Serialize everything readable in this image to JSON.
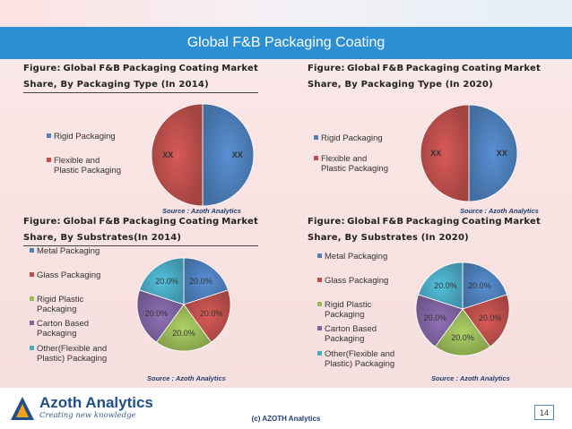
{
  "slide": {
    "title": "Global F&B Packaging Coating",
    "footer": {
      "brand": "Azoth Analytics",
      "tagline": "Creating new knowledge",
      "copyright": "(c) AZOTH Analytics",
      "page": "14"
    }
  },
  "panels": [
    {
      "fig_words": [
        "Figure:",
        "Global",
        "F&B",
        "Packaging",
        "Coating",
        "Market"
      ],
      "fig_line2": "Share, By Packaging Type (In 2014)",
      "source": "Source : Azoth Analytics",
      "legend": [
        "Rigid Packaging",
        "Flexible and\nPlastic Packaging"
      ]
    },
    {
      "fig_words": [
        "Figure:",
        "Global",
        "F&B",
        "Packaging",
        "Coating",
        "Market"
      ],
      "fig_line2": "Share, By Packaging Type (In 2020)",
      "source": "Source : Azoth Analytics",
      "legend": [
        "Rigid Packaging",
        "Flexible and\nPlastic Packaging"
      ]
    },
    {
      "fig_words": [
        "Figure:",
        "Global",
        "F&B",
        "Packaging",
        "Coating",
        "Market"
      ],
      "fig_line2": "Share, By Substrates(In 2014)",
      "source": "Source : Azoth Analytics",
      "legend": [
        "Metal Packaging",
        "Glass Packaging",
        "Rigid Plastic\nPackaging",
        "Carton Based\nPackaging",
        "Other(Flexible and\nPlastic) Packaging"
      ]
    },
    {
      "fig_words": [
        "Figure:",
        "Global",
        "F&B",
        "Packaging",
        "Coating",
        "Market"
      ],
      "fig_line2": "Share, By Substrates (In 2020)",
      "source": "Source : Azoth Analytics",
      "legend": [
        "Metal Packaging",
        "Glass Packaging",
        "Rigid Plastic\nPackaging",
        "Carton Based\nPackaging",
        "Other(Flexible and\nPlastic) Packaging"
      ]
    }
  ],
  "chart_data": [
    {
      "type": "pie",
      "title": "Global F&B Packaging Coating Market Share, By Packaging Type (In 2014)",
      "categories": [
        "Rigid Packaging",
        "Flexible and Plastic Packaging"
      ],
      "values": [
        50,
        50
      ],
      "data_labels": [
        "XX",
        "XX"
      ],
      "colors": [
        "#4f81bd",
        "#c0504d"
      ],
      "legend_position": "left"
    },
    {
      "type": "pie",
      "title": "Global F&B Packaging Coating Market Share, By Packaging Type (In 2020)",
      "categories": [
        "Rigid Packaging",
        "Flexible and Plastic Packaging"
      ],
      "values": [
        50,
        50
      ],
      "data_labels": [
        "XX",
        "XX"
      ],
      "colors": [
        "#4f81bd",
        "#c0504d"
      ],
      "legend_position": "left"
    },
    {
      "type": "pie",
      "title": "Global F&B Packaging Coating Market Share, By Substrates(In 2014)",
      "categories": [
        "Metal Packaging",
        "Glass Packaging",
        "Rigid Plastic Packaging",
        "Carton Based Packaging",
        "Other(Flexible and Plastic) Packaging"
      ],
      "values": [
        20,
        20,
        20,
        20,
        20
      ],
      "data_labels": [
        "20.0%",
        "20.0%",
        "20.0%",
        "20.0%",
        "20.0%"
      ],
      "colors": [
        "#4f81bd",
        "#c0504d",
        "#9bbb59",
        "#8064a2",
        "#4bacc6"
      ],
      "legend_position": "left"
    },
    {
      "type": "pie",
      "title": "Global F&B Packaging Coating Market Share, By Substrates (In 2020)",
      "categories": [
        "Metal Packaging",
        "Glass Packaging",
        "Rigid Plastic Packaging",
        "Carton Based Packaging",
        "Other(Flexible and Plastic) Packaging"
      ],
      "values": [
        20,
        20,
        20,
        20,
        20
      ],
      "data_labels": [
        "20.0%",
        "20.0%",
        "20.0%",
        "20.0%",
        "20.0%"
      ],
      "colors": [
        "#4f81bd",
        "#c0504d",
        "#9bbb59",
        "#8064a2",
        "#4bacc6"
      ],
      "legend_position": "left"
    }
  ]
}
